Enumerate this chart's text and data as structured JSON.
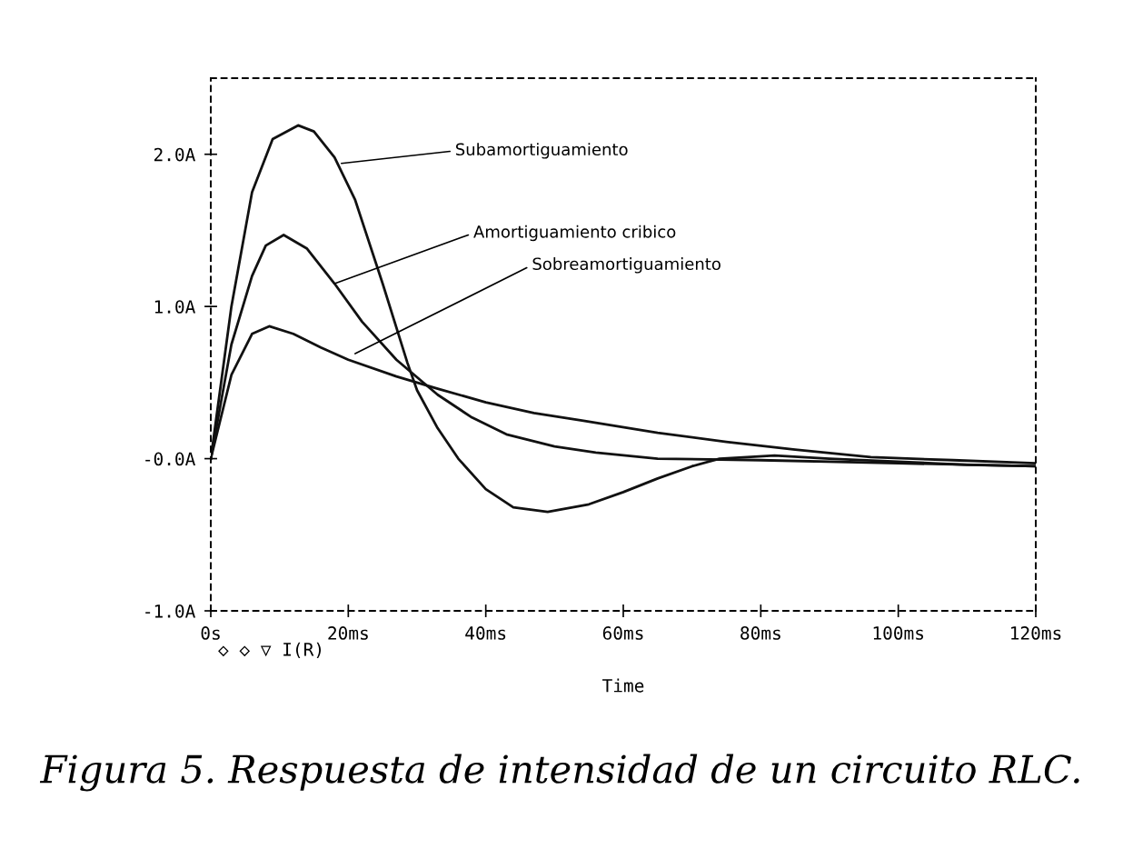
{
  "chart_data": {
    "type": "line",
    "xlabel": "Time",
    "xlim": [
      0,
      120
    ],
    "ylim": [
      -1,
      2.5
    ],
    "xticks": [
      {
        "value": 0,
        "label": "0s"
      },
      {
        "value": 20,
        "label": "20ms"
      },
      {
        "value": 40,
        "label": "40ms"
      },
      {
        "value": 60,
        "label": "60ms"
      },
      {
        "value": 80,
        "label": "80ms"
      },
      {
        "value": 100,
        "label": "100ms"
      },
      {
        "value": 120,
        "label": "120ms"
      }
    ],
    "yticks": [
      {
        "value": -1,
        "label": "-1.0A"
      },
      {
        "value": 0,
        "label": "-0.0A"
      },
      {
        "value": 1,
        "label": "1.0A"
      },
      {
        "value": 2,
        "label": "2.0A"
      }
    ],
    "line_style": "solid",
    "marker": "none",
    "series": [
      {
        "color": "#111111",
        "x": [
          0,
          3,
          6,
          9,
          12.7,
          15,
          18,
          21,
          25,
          28.6,
          30,
          33,
          36,
          40,
          44,
          49,
          55,
          60,
          65,
          70,
          74,
          82,
          90,
          100,
          110,
          120
        ],
        "values": [
          0,
          1.0,
          1.75,
          2.1,
          2.19,
          2.15,
          1.98,
          1.7,
          1.15,
          0.63,
          0.45,
          0.2,
          0.0,
          -0.2,
          -0.32,
          -0.35,
          -0.3,
          -0.22,
          -0.13,
          -0.05,
          0.0,
          0.02,
          0.0,
          -0.02,
          -0.04,
          -0.05
        ]
      },
      {
        "color": "#111111",
        "x": [
          0,
          3,
          6,
          8,
          10.6,
          14,
          18,
          22,
          27,
          33,
          38,
          43,
          50,
          56,
          65,
          80,
          100,
          120
        ],
        "values": [
          0,
          0.75,
          1.2,
          1.4,
          1.47,
          1.38,
          1.15,
          0.9,
          0.65,
          0.42,
          0.27,
          0.16,
          0.08,
          0.04,
          0.0,
          -0.01,
          -0.03,
          -0.05
        ]
      },
      {
        "color": "#111111",
        "x": [
          0,
          3,
          6,
          8.5,
          12,
          16,
          20,
          27,
          33,
          40,
          47,
          54,
          65,
          75,
          85,
          96,
          108,
          120
        ],
        "values": [
          0,
          0.55,
          0.82,
          0.87,
          0.82,
          0.73,
          0.65,
          0.54,
          0.46,
          0.37,
          0.3,
          0.25,
          0.17,
          0.11,
          0.06,
          0.01,
          -0.01,
          -0.03
        ]
      }
    ],
    "annotations": [
      {
        "text": "Subamortiguamiento",
        "x": 19,
        "y": 1.94
      },
      {
        "text": "Amortiguamiento cribico",
        "x": 18,
        "y": 1.15
      },
      {
        "text": "Sobreamortiguamiento",
        "x": 21,
        "y": 0.69
      },
      "◇ ◇ ▽ I(R)",
      "Figura 5. Respuesta de intensidad de un circuito RLC."
    ]
  }
}
